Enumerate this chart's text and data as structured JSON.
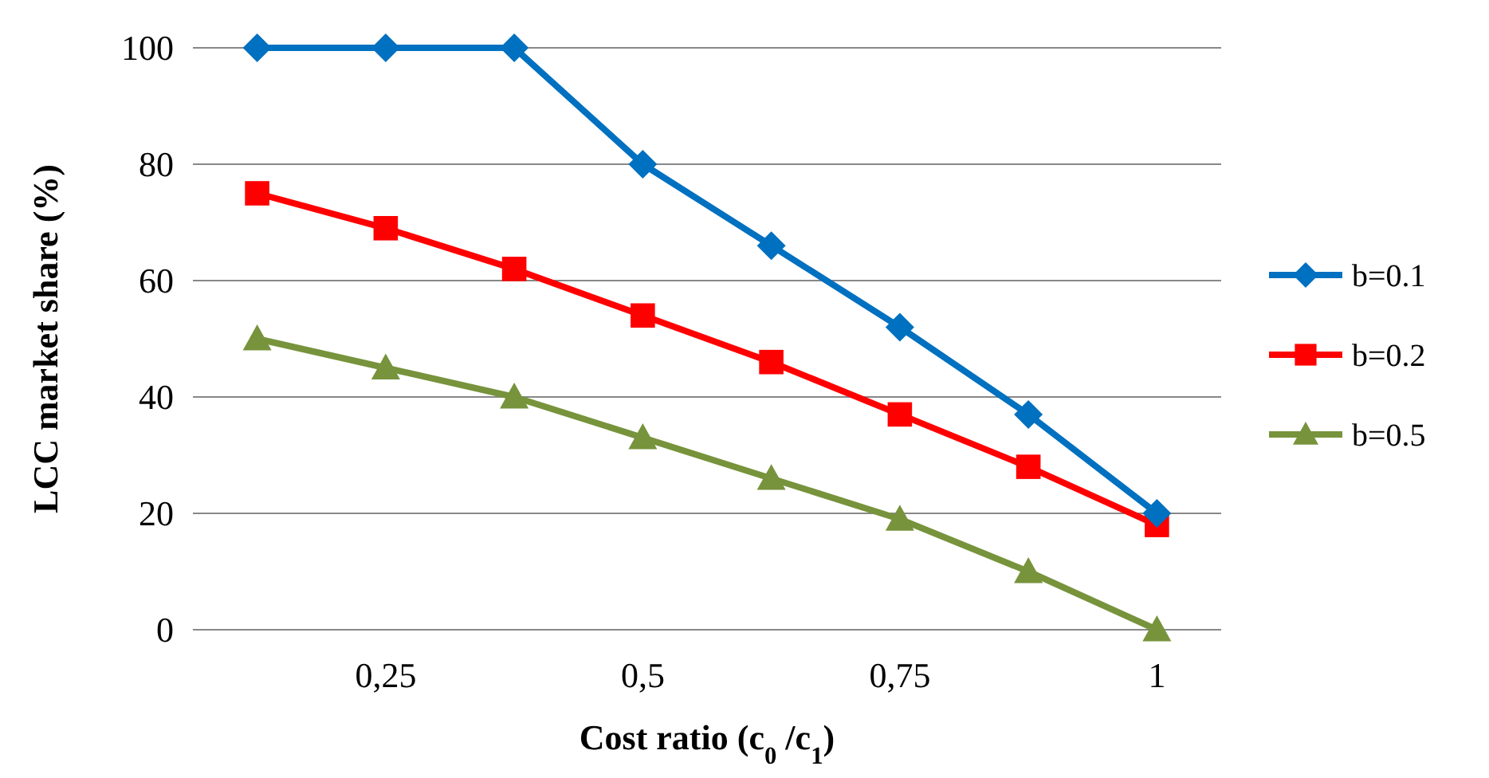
{
  "chart_data": {
    "type": "line",
    "xlabel": "Cost ratio (c$_{0}$ /c$_{1}$)",
    "ylabel": "LCC market share (%)",
    "x": [
      0.125,
      0.25,
      0.375,
      0.5,
      0.625,
      0.75,
      0.875,
      1
    ],
    "xlim": [
      0.0625,
      1.0625
    ],
    "xticks": [
      {
        "value": 0.25,
        "label": "0,25"
      },
      {
        "value": 0.5,
        "label": "0,5"
      },
      {
        "value": 0.75,
        "label": "0,75"
      },
      1
    ],
    "ylim": [
      0,
      100
    ],
    "yticks": [
      0,
      20,
      40,
      60,
      80,
      100
    ],
    "grid": "y",
    "legend": "right",
    "series": [
      {
        "name": "b=0.1",
        "color": "#0070c0",
        "marker": "diamond",
        "values": [
          100,
          100,
          100,
          80,
          66,
          52,
          37,
          20
        ]
      },
      {
        "name": "b=0.2",
        "color": "#ff0000",
        "marker": "square",
        "values": [
          75,
          69,
          62,
          54,
          46,
          37,
          28,
          18
        ]
      },
      {
        "name": "b=0.5",
        "color": "#77933c",
        "marker": "triangle",
        "values": [
          50,
          45,
          40,
          33,
          26,
          19,
          10,
          0
        ]
      }
    ]
  }
}
